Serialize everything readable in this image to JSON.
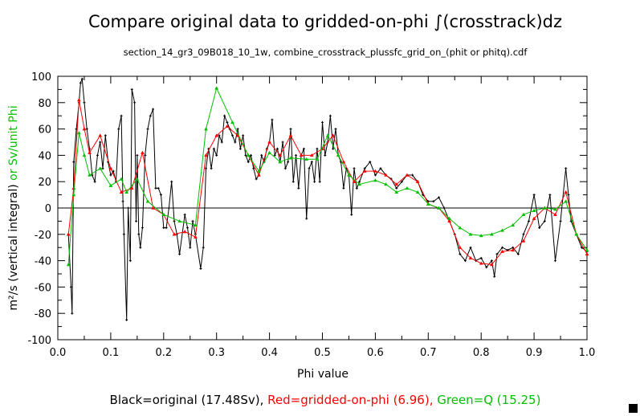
{
  "chart_data": {
    "type": "line",
    "title": "Compare original data to gridded-on-phi ∫(crosstrack)dz",
    "subtitle": "section_14_gr3_09B018_10_1w, combine_crosstrack_plussfc_grid_on_(phit or phitq).cdf",
    "xlabel": "Phi value",
    "ylabel_black": "m²/s (vertical integral)",
    "ylabel_green": " or Sv/unit Phi",
    "xlim": [
      0,
      1
    ],
    "ylim": [
      -100,
      100
    ],
    "xticks": [
      0.0,
      0.1,
      0.2,
      0.3,
      0.4,
      0.5,
      0.6,
      0.7,
      0.8,
      0.9,
      1.0
    ],
    "xtick_labels": [
      "0.0",
      "0.1",
      "0.2",
      "0.3",
      "0.4",
      "0.5",
      "0.6",
      "0.7",
      "0.8",
      "0.9",
      "1.0"
    ],
    "yticks": [
      -100,
      -80,
      -60,
      -40,
      -20,
      0,
      20,
      40,
      60,
      80,
      100
    ],
    "ytick_labels": [
      "-100",
      "-80",
      "-60",
      "-40",
      "-20",
      "0",
      "20",
      "40",
      "60",
      "80",
      "100"
    ],
    "legend": [
      {
        "text": "Black=original (17.48Sv), ",
        "color": "#000000"
      },
      {
        "text": "Red=gridded-on-phi (6.96), ",
        "color": "#ff0000"
      },
      {
        "text": "Green=Q (15.25)",
        "color": "#00c000"
      }
    ],
    "series": [
      {
        "name": "original",
        "color": "#000000",
        "x": [
          0.02,
          0.025,
          0.027,
          0.03,
          0.035,
          0.04,
          0.043,
          0.046,
          0.05,
          0.055,
          0.06,
          0.065,
          0.07,
          0.075,
          0.08,
          0.085,
          0.09,
          0.095,
          0.1,
          0.105,
          0.11,
          0.115,
          0.12,
          0.123,
          0.125,
          0.13,
          0.133,
          0.137,
          0.14,
          0.145,
          0.148,
          0.15,
          0.153,
          0.156,
          0.16,
          0.165,
          0.17,
          0.175,
          0.18,
          0.185,
          0.19,
          0.195,
          0.2,
          0.205,
          0.21,
          0.215,
          0.22,
          0.225,
          0.23,
          0.24,
          0.245,
          0.25,
          0.255,
          0.26,
          0.27,
          0.275,
          0.28,
          0.285,
          0.29,
          0.295,
          0.3,
          0.305,
          0.31,
          0.315,
          0.32,
          0.325,
          0.33,
          0.335,
          0.34,
          0.345,
          0.35,
          0.355,
          0.36,
          0.365,
          0.37,
          0.375,
          0.38,
          0.385,
          0.39,
          0.395,
          0.4,
          0.405,
          0.41,
          0.415,
          0.42,
          0.425,
          0.43,
          0.435,
          0.44,
          0.445,
          0.45,
          0.455,
          0.46,
          0.465,
          0.47,
          0.475,
          0.48,
          0.485,
          0.49,
          0.495,
          0.5,
          0.505,
          0.51,
          0.515,
          0.52,
          0.525,
          0.53,
          0.535,
          0.54,
          0.545,
          0.55,
          0.555,
          0.56,
          0.565,
          0.57,
          0.58,
          0.59,
          0.6,
          0.61,
          0.62,
          0.63,
          0.64,
          0.65,
          0.66,
          0.67,
          0.68,
          0.69,
          0.7,
          0.71,
          0.72,
          0.73,
          0.74,
          0.75,
          0.76,
          0.77,
          0.78,
          0.79,
          0.8,
          0.81,
          0.82,
          0.825,
          0.83,
          0.84,
          0.85,
          0.86,
          0.87,
          0.88,
          0.89,
          0.9,
          0.91,
          0.92,
          0.93,
          0.94,
          0.95,
          0.96,
          0.965,
          0.97,
          0.98,
          0.99,
          1.0
        ],
        "y": [
          -20,
          -60,
          -80,
          35,
          60,
          80,
          95,
          98,
          80,
          60,
          45,
          25,
          20,
          40,
          50,
          30,
          55,
          35,
          25,
          28,
          20,
          60,
          70,
          5,
          -20,
          -85,
          0,
          -40,
          90,
          80,
          -10,
          40,
          -20,
          -30,
          -15,
          40,
          60,
          70,
          75,
          15,
          15,
          10,
          -15,
          -15,
          0,
          20,
          -10,
          -20,
          -35,
          -5,
          -15,
          -30,
          -10,
          -20,
          -46,
          -30,
          30,
          45,
          30,
          45,
          40,
          55,
          50,
          70,
          65,
          60,
          55,
          50,
          60,
          45,
          55,
          40,
          35,
          40,
          30,
          22,
          25,
          40,
          35,
          45,
          50,
          67,
          40,
          45,
          35,
          50,
          30,
          35,
          60,
          20,
          40,
          15,
          40,
          45,
          -8,
          30,
          35,
          20,
          45,
          20,
          65,
          40,
          50,
          70,
          45,
          60,
          40,
          35,
          15,
          30,
          25,
          -5,
          30,
          15,
          20,
          30,
          35,
          25,
          30,
          25,
          22,
          15,
          20,
          25,
          25,
          20,
          10,
          5,
          5,
          8,
          0,
          -10,
          -20,
          -35,
          -40,
          -30,
          -40,
          -38,
          -45,
          -40,
          -52,
          -35,
          -30,
          -32,
          -30,
          -35,
          -20,
          -10,
          10,
          -15,
          -10,
          10,
          -40,
          -10,
          30,
          10,
          -10,
          -20,
          -30,
          -33
        ]
      },
      {
        "name": "gridded-on-phi",
        "color": "#ff0000",
        "x": [
          0.02,
          0.03,
          0.04,
          0.05,
          0.06,
          0.08,
          0.1,
          0.12,
          0.14,
          0.16,
          0.18,
          0.2,
          0.22,
          0.24,
          0.26,
          0.28,
          0.3,
          0.32,
          0.34,
          0.36,
          0.38,
          0.4,
          0.42,
          0.44,
          0.46,
          0.48,
          0.5,
          0.52,
          0.54,
          0.56,
          0.58,
          0.6,
          0.62,
          0.64,
          0.66,
          0.68,
          0.7,
          0.72,
          0.74,
          0.76,
          0.78,
          0.8,
          0.82,
          0.84,
          0.86,
          0.88,
          0.9,
          0.92,
          0.94,
          0.96,
          0.98,
          1.0
        ],
        "y": [
          -20,
          15,
          82,
          60,
          42,
          55,
          30,
          12,
          15,
          42,
          0,
          -5,
          -20,
          -18,
          -22,
          40,
          55,
          62,
          55,
          40,
          25,
          50,
          40,
          55,
          40,
          40,
          45,
          55,
          35,
          20,
          28,
          28,
          25,
          18,
          25,
          20,
          3,
          0,
          -10,
          -30,
          -38,
          -42,
          -43,
          -33,
          -32,
          -25,
          -8,
          0,
          -5,
          12,
          -20,
          -35
        ]
      },
      {
        "name": "Q",
        "color": "#00c000",
        "x": [
          0.02,
          0.03,
          0.04,
          0.05,
          0.06,
          0.08,
          0.1,
          0.12,
          0.13,
          0.15,
          0.17,
          0.2,
          0.23,
          0.26,
          0.28,
          0.3,
          0.33,
          0.36,
          0.38,
          0.4,
          0.42,
          0.44,
          0.47,
          0.49,
          0.51,
          0.53,
          0.55,
          0.57,
          0.6,
          0.62,
          0.64,
          0.66,
          0.68,
          0.7,
          0.72,
          0.74,
          0.76,
          0.78,
          0.8,
          0.82,
          0.84,
          0.86,
          0.88,
          0.9,
          0.92,
          0.94,
          0.96,
          0.98,
          1.0
        ],
        "y": [
          -43,
          10,
          57,
          40,
          25,
          30,
          17,
          22,
          12,
          22,
          5,
          -5,
          -10,
          -13,
          60,
          91,
          65,
          40,
          28,
          42,
          35,
          38,
          37,
          37,
          55,
          40,
          25,
          18,
          21,
          18,
          12,
          15,
          12,
          3,
          0,
          -8,
          -15,
          -20,
          -21,
          -20,
          -17,
          -13,
          -5,
          -2,
          0,
          -1,
          5,
          -20,
          -32
        ]
      }
    ]
  }
}
